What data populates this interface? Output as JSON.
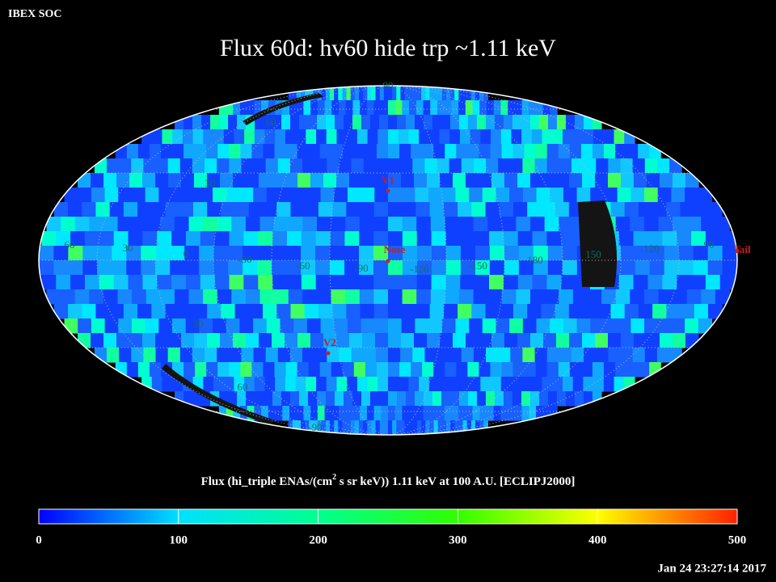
{
  "header": {
    "org": "IBEX SOC",
    "title": "Flux   60d: hv60 hide trp ~1.11 keV"
  },
  "map": {
    "grid_labels": [
      "90",
      "60",
      "30",
      "60",
      "30",
      "0",
      "-30",
      "-60",
      "-90",
      "-120",
      "-150",
      "180",
      "150",
      "120",
      "90",
      "30",
      "60",
      "-90"
    ],
    "markers": [
      "V1",
      "Nose",
      "V2",
      "Tail"
    ]
  },
  "colorbar": {
    "title": [
      "Flux (hi_triple ENAs/(cm",
      "2",
      " s sr keV))  1.11 keV at 100 A.U. [ECLIPJ2000]"
    ],
    "ticks": [
      "0",
      "100",
      "200",
      "300",
      "400",
      "500"
    ]
  },
  "footer": {
    "timestamp": "Jan 24 23:27:14 2017"
  }
}
